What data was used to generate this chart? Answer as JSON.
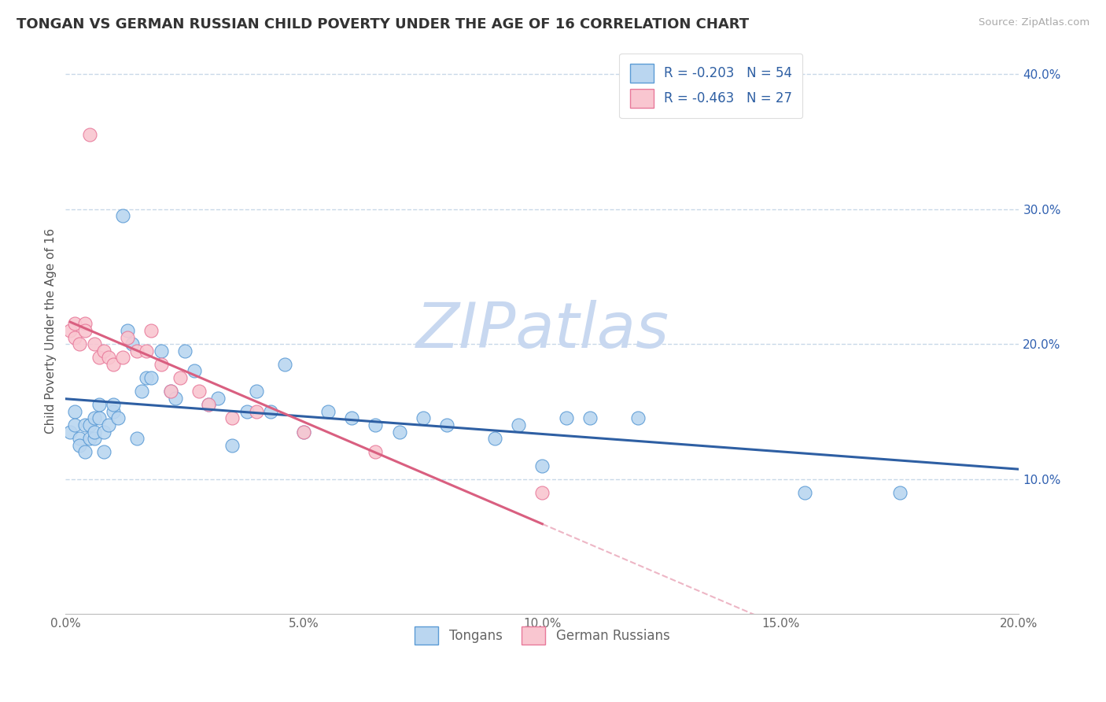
{
  "title": "TONGAN VS GERMAN RUSSIAN CHILD POVERTY UNDER THE AGE OF 16 CORRELATION CHART",
  "source": "Source: ZipAtlas.com",
  "ylabel": "Child Poverty Under the Age of 16",
  "xlim": [
    0.0,
    0.2
  ],
  "ylim": [
    0.0,
    0.42
  ],
  "xticks": [
    0.0,
    0.05,
    0.1,
    0.15,
    0.2
  ],
  "yticks": [
    0.1,
    0.2,
    0.3,
    0.4
  ],
  "xtick_labels": [
    "0.0%",
    "5.0%",
    "10.0%",
    "15.0%",
    "20.0%"
  ],
  "right_ytick_labels": [
    "10.0%",
    "20.0%",
    "30.0%",
    "40.0%"
  ],
  "tongans_R": -0.203,
  "tongans_N": 54,
  "german_russian_R": -0.463,
  "german_russian_N": 27,
  "tongans_color": "#bad6f0",
  "tongans_edge_color": "#5b9bd5",
  "tongans_line_color": "#2e5fa3",
  "german_russian_color": "#f9c6d0",
  "german_russian_edge_color": "#e8799a",
  "german_russian_line_color": "#d95f80",
  "watermark_color": "#c8d8f0",
  "background_color": "#ffffff",
  "grid_color": "#c8d8e8",
  "title_color": "#333333",
  "axis_label_color": "#555555",
  "right_tick_color": "#3060b0",
  "tongans_x": [
    0.001,
    0.002,
    0.002,
    0.003,
    0.003,
    0.004,
    0.004,
    0.005,
    0.005,
    0.006,
    0.006,
    0.006,
    0.007,
    0.007,
    0.008,
    0.008,
    0.009,
    0.01,
    0.01,
    0.011,
    0.012,
    0.013,
    0.014,
    0.015,
    0.016,
    0.017,
    0.018,
    0.02,
    0.022,
    0.023,
    0.025,
    0.027,
    0.03,
    0.032,
    0.035,
    0.038,
    0.04,
    0.043,
    0.046,
    0.05,
    0.055,
    0.06,
    0.065,
    0.07,
    0.075,
    0.08,
    0.09,
    0.095,
    0.1,
    0.105,
    0.11,
    0.12,
    0.155,
    0.175
  ],
  "tongans_y": [
    0.135,
    0.15,
    0.14,
    0.13,
    0.125,
    0.14,
    0.12,
    0.14,
    0.13,
    0.145,
    0.13,
    0.135,
    0.145,
    0.155,
    0.135,
    0.12,
    0.14,
    0.15,
    0.155,
    0.145,
    0.295,
    0.21,
    0.2,
    0.13,
    0.165,
    0.175,
    0.175,
    0.195,
    0.165,
    0.16,
    0.195,
    0.18,
    0.155,
    0.16,
    0.125,
    0.15,
    0.165,
    0.15,
    0.185,
    0.135,
    0.15,
    0.145,
    0.14,
    0.135,
    0.145,
    0.14,
    0.13,
    0.14,
    0.11,
    0.145,
    0.145,
    0.145,
    0.09,
    0.09
  ],
  "german_russian_x": [
    0.001,
    0.002,
    0.002,
    0.003,
    0.004,
    0.004,
    0.005,
    0.006,
    0.007,
    0.008,
    0.009,
    0.01,
    0.012,
    0.013,
    0.015,
    0.017,
    0.018,
    0.02,
    0.022,
    0.024,
    0.028,
    0.03,
    0.035,
    0.04,
    0.05,
    0.065,
    0.1
  ],
  "german_russian_y": [
    0.21,
    0.215,
    0.205,
    0.2,
    0.215,
    0.21,
    0.355,
    0.2,
    0.19,
    0.195,
    0.19,
    0.185,
    0.19,
    0.205,
    0.195,
    0.195,
    0.21,
    0.185,
    0.165,
    0.175,
    0.165,
    0.155,
    0.145,
    0.15,
    0.135,
    0.12,
    0.09
  ],
  "legend_fontsize": 12,
  "title_fontsize": 13,
  "ylabel_fontsize": 11
}
